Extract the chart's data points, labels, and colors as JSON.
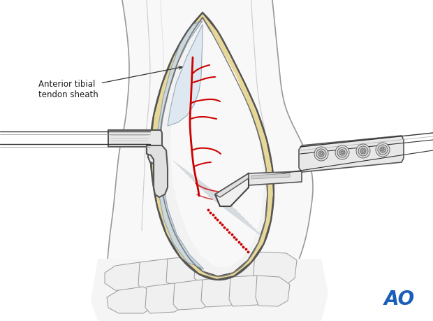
{
  "background_color": "#ffffff",
  "label_text": "Anterior tibial\ntendon sheath",
  "label_color": "#1a1a1a",
  "label_fontsize": 8.5,
  "ao_color": "#1a5eb8",
  "ao_fontsize": 20,
  "fat_color": "#e8d898",
  "vessel_color": "#cc0000",
  "outline_color": "#999999",
  "dark_outline": "#555555",
  "light_gray": "#d8d8d8",
  "mid_gray": "#b8b8b8",
  "skin_gray": "#c8c8c8"
}
